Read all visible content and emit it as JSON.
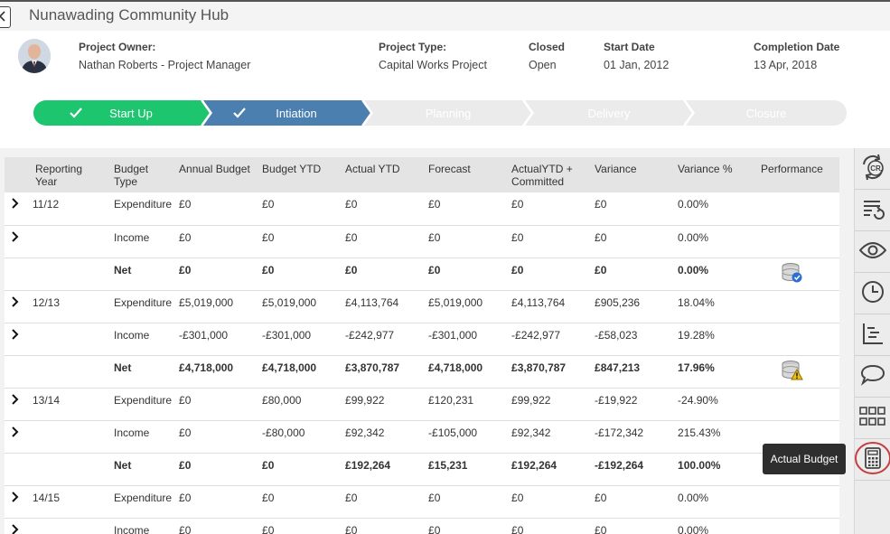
{
  "header": {
    "title": "Nunawading Community Hub"
  },
  "project": {
    "owner_label": "Project Owner:",
    "owner_value": "Nathan Roberts - Project Manager",
    "type_label": "Project Type:",
    "type_value": "Capital Works Project",
    "closed_label": "Closed",
    "closed_value": "Open",
    "start_label": "Start Date",
    "start_value": "01 Jan, 2012",
    "completion_label": "Completion Date",
    "completion_value": "13 Apr, 2018"
  },
  "stepper": {
    "steps": [
      {
        "label": "Start Up",
        "state": "done",
        "color": "#1dc56e"
      },
      {
        "label": "Intiation",
        "state": "current",
        "color": "#4a7fb0"
      },
      {
        "label": "Planning",
        "state": "todo",
        "color": "#ebebeb"
      },
      {
        "label": "Delivery",
        "state": "todo",
        "color": "#ebebeb"
      },
      {
        "label": "Closure",
        "state": "todo",
        "color": "#ebebeb"
      }
    ]
  },
  "table": {
    "headers": [
      "Reporting Year",
      "Budget Type",
      "Annual Budget",
      "Budget YTD",
      "Actual YTD",
      "Forecast",
      "ActualYTD + Committed",
      "Variance",
      "Variance %",
      "Performance"
    ],
    "rows": [
      {
        "expand": true,
        "year": "11/12",
        "type": "Expenditure",
        "annual": "£0",
        "ytd": "£0",
        "actual": "£0",
        "forecast": "£0",
        "committed": "£0",
        "variance": "£0",
        "pct": "0.00%",
        "perf": ""
      },
      {
        "expand": true,
        "year": "",
        "type": "Income",
        "annual": "£0",
        "ytd": "£0",
        "actual": "£0",
        "forecast": "£0",
        "committed": "£0",
        "variance": "£0",
        "pct": "0.00%",
        "perf": ""
      },
      {
        "expand": false,
        "net": true,
        "year": "",
        "type": "Net",
        "annual": "£0",
        "ytd": "£0",
        "actual": "£0",
        "forecast": "£0",
        "committed": "£0",
        "variance": "£0",
        "pct": "0.00%",
        "perf": "database-ok-icon"
      },
      {
        "expand": true,
        "year": "12/13",
        "type": "Expenditure",
        "annual": "£5,019,000",
        "ytd": "£5,019,000",
        "actual": "£4,113,764",
        "forecast": "£5,019,000",
        "committed": "£4,113,764",
        "variance": "£905,236",
        "pct": "18.04%",
        "perf": ""
      },
      {
        "expand": true,
        "year": "",
        "type": "Income",
        "annual": "-£301,000",
        "ytd": "-£301,000",
        "actual": "-£242,977",
        "forecast": "-£301,000",
        "committed": "-£242,977",
        "variance": "-£58,023",
        "pct": "19.28%",
        "perf": ""
      },
      {
        "expand": false,
        "net": true,
        "year": "",
        "type": "Net",
        "annual": "£4,718,000",
        "ytd": "£4,718,000",
        "actual": "£3,870,787",
        "forecast": "£4,718,000",
        "committed": "£3,870,787",
        "variance": "£847,213",
        "pct": "17.96%",
        "perf": "database-warning-icon"
      },
      {
        "expand": true,
        "year": "13/14",
        "type": "Expenditure",
        "annual": "£0",
        "ytd": "£80,000",
        "actual": "£99,922",
        "forecast": "£120,231",
        "committed": "£99,922",
        "variance": "-£19,922",
        "pct": "-24.90%",
        "perf": ""
      },
      {
        "expand": true,
        "year": "",
        "type": "Income",
        "annual": "£0",
        "ytd": "-£80,000",
        "actual": "£92,342",
        "forecast": "-£105,000",
        "committed": "£92,342",
        "variance": "-£172,342",
        "pct": "215.43%",
        "perf": ""
      },
      {
        "expand": false,
        "net": true,
        "year": "",
        "type": "Net",
        "annual": "£0",
        "ytd": "£0",
        "actual": "£192,264",
        "forecast": "£15,231",
        "committed": "£192,264",
        "variance": "-£192,264",
        "pct": "100.00%",
        "perf": ""
      },
      {
        "expand": true,
        "year": "14/15",
        "type": "Expenditure",
        "annual": "£0",
        "ytd": "£0",
        "actual": "£0",
        "forecast": "£0",
        "committed": "£0",
        "variance": "£0",
        "pct": "0.00%",
        "perf": ""
      },
      {
        "expand": true,
        "year": "",
        "type": "Income",
        "annual": "£0",
        "ytd": "£0",
        "actual": "£0",
        "forecast": "£0",
        "committed": "£0",
        "variance": "£0",
        "pct": "0.00%",
        "perf": ""
      }
    ]
  },
  "sidebar": {
    "items": [
      {
        "icon": "change-request-icon"
      },
      {
        "icon": "list-refresh-icon"
      },
      {
        "icon": "eye-icon"
      },
      {
        "icon": "clock-icon"
      },
      {
        "icon": "gantt-icon"
      },
      {
        "icon": "comment-icon"
      },
      {
        "icon": "grid-icon"
      },
      {
        "icon": "calculator-icon",
        "active": true
      }
    ],
    "tooltip": "Actual Budget"
  }
}
